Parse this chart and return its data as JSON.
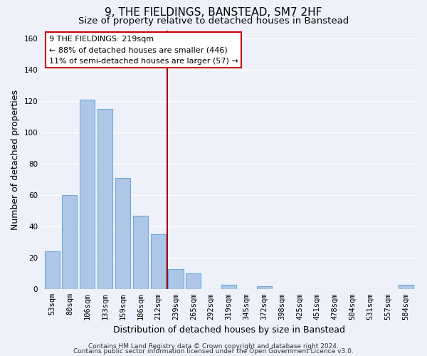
{
  "title": "9, THE FIELDINGS, BANSTEAD, SM7 2HF",
  "subtitle": "Size of property relative to detached houses in Banstead",
  "xlabel": "Distribution of detached houses by size in Banstead",
  "ylabel": "Number of detached properties",
  "bar_labels": [
    "53sqm",
    "80sqm",
    "106sqm",
    "133sqm",
    "159sqm",
    "186sqm",
    "212sqm",
    "239sqm",
    "265sqm",
    "292sqm",
    "319sqm",
    "345sqm",
    "372sqm",
    "398sqm",
    "425sqm",
    "451sqm",
    "478sqm",
    "504sqm",
    "531sqm",
    "557sqm",
    "584sqm"
  ],
  "bar_values": [
    24,
    60,
    121,
    115,
    71,
    47,
    35,
    13,
    10,
    0,
    3,
    0,
    2,
    0,
    0,
    0,
    0,
    0,
    0,
    0,
    3
  ],
  "bar_color": "#aec6e8",
  "bar_edge_color": "#6fa8d8",
  "vline_x": 6.5,
  "vline_color": "#aa0000",
  "ylim": [
    0,
    165
  ],
  "yticks": [
    0,
    20,
    40,
    60,
    80,
    100,
    120,
    140,
    160
  ],
  "annotation_title": "9 THE FIELDINGS: 219sqm",
  "annotation_line1": "← 88% of detached houses are smaller (446)",
  "annotation_line2": "11% of semi-detached houses are larger (57) →",
  "annotation_box_color": "#ffffff",
  "annotation_box_edge": "#cc0000",
  "footer_line1": "Contains HM Land Registry data © Crown copyright and database right 2024.",
  "footer_line2": "Contains public sector information licensed under the Open Government Licence v3.0.",
  "background_color": "#eef1fa",
  "grid_color": "#ffffff",
  "title_fontsize": 11,
  "subtitle_fontsize": 9.5,
  "axis_label_fontsize": 9,
  "tick_fontsize": 7.5,
  "annotation_fontsize": 8,
  "footer_fontsize": 6.5
}
